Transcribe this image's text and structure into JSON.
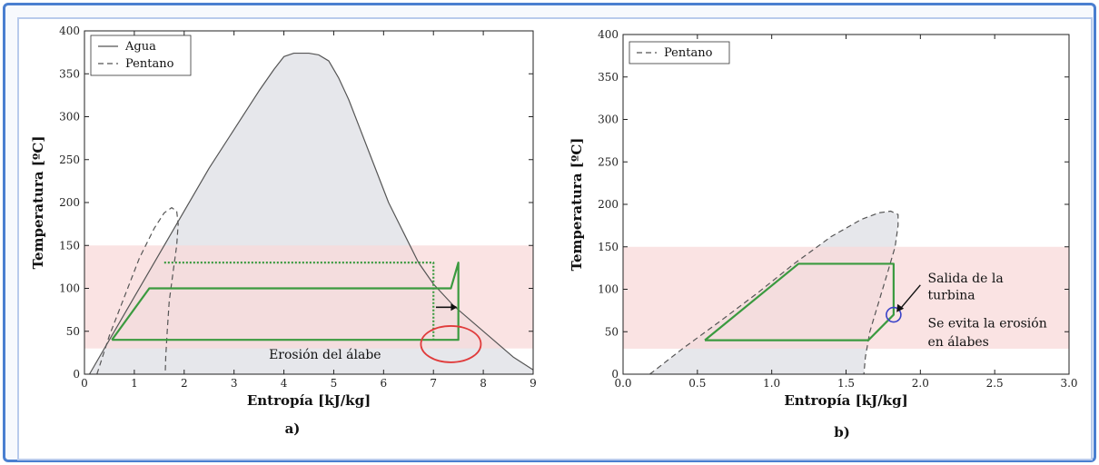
{
  "chart_data": [
    {
      "type": "line",
      "panel_label": "a)",
      "xlabel": "Entropía [kJ/kg]",
      "ylabel": "Temperatura [ºC]",
      "xlim": [
        0,
        9
      ],
      "ylim": [
        0,
        400
      ],
      "xticks": [
        "0",
        "1",
        "2",
        "3",
        "4",
        "5",
        "6",
        "7",
        "8",
        "9"
      ],
      "yticks": [
        "0",
        "50",
        "100",
        "150",
        "200",
        "250",
        "300",
        "350",
        "400"
      ],
      "legend": {
        "placement": "top-left",
        "entries": [
          "Agua",
          "Pentano"
        ]
      },
      "band": {
        "y": [
          30,
          150
        ],
        "color": "#f8d9d9"
      },
      "series": [
        {
          "name": "Agua",
          "style": "solid",
          "color": "#555555",
          "fill": "#e6e7eb",
          "x": [
            0.1,
            0.5,
            1.0,
            1.5,
            2.0,
            2.5,
            3.0,
            3.5,
            3.8,
            4.0,
            4.2,
            4.4,
            4.5,
            4.7,
            4.9,
            5.1,
            5.3,
            5.5,
            5.8,
            6.1,
            6.4,
            6.7,
            7.0,
            7.4,
            7.8,
            8.2,
            8.6,
            9.0
          ],
          "y": [
            0,
            40,
            90,
            140,
            190,
            240,
            285,
            330,
            355,
            370,
            374,
            374,
            374,
            372,
            365,
            345,
            320,
            290,
            245,
            200,
            165,
            130,
            105,
            80,
            60,
            40,
            20,
            5
          ]
        },
        {
          "name": "Pentano",
          "style": "dashed",
          "color": "#555555",
          "x": [
            0.25,
            0.5,
            0.8,
            1.1,
            1.4,
            1.6,
            1.75,
            1.85,
            1.88,
            1.85,
            1.78,
            1.7,
            1.66,
            1.63,
            1.62
          ],
          "y": [
            0,
            45,
            90,
            135,
            170,
            188,
            194,
            190,
            175,
            150,
            120,
            85,
            50,
            20,
            0
          ]
        },
        {
          "name": "Ciclo",
          "style": "solid",
          "color": "#3a9a3f",
          "x": [
            0.55,
            1.3,
            7.35,
            7.5,
            7.5,
            7.5,
            0.55
          ],
          "y": [
            40,
            100,
            100,
            130,
            100,
            40,
            40
          ]
        },
        {
          "name": "Ciclo punteado",
          "style": "dotted",
          "color": "#3a9a3f",
          "x": [
            1.6,
            7.0,
            7.0
          ],
          "y": [
            130,
            130,
            40
          ]
        }
      ],
      "annotations": [
        {
          "text": "Erosión del álabe",
          "x": 3.7,
          "y": 18
        }
      ]
    },
    {
      "type": "line",
      "panel_label": "b)",
      "xlabel": "Entropía [kJ/kg]",
      "ylabel": "Temperatura [ºC]",
      "xlim": [
        0.0,
        3.0
      ],
      "ylim": [
        0,
        400
      ],
      "xticks": [
        "0.0",
        "0.5",
        "1.0",
        "1.5",
        "2.0",
        "2.5",
        "3.0"
      ],
      "yticks": [
        "0",
        "50",
        "100",
        "150",
        "200",
        "250",
        "300",
        "350",
        "400"
      ],
      "legend": {
        "placement": "top-left",
        "entries": [
          "Pentano"
        ]
      },
      "band": {
        "y": [
          30,
          150
        ],
        "color": "#f8d9d9"
      },
      "series": [
        {
          "name": "Pentano",
          "style": "dashed",
          "color": "#555555",
          "fill": "#e6e7eb",
          "x": [
            0.18,
            0.4,
            0.65,
            0.9,
            1.15,
            1.4,
            1.6,
            1.72,
            1.8,
            1.85,
            1.85,
            1.83,
            1.78,
            1.72,
            1.66,
            1.63,
            1.62
          ],
          "y": [
            0,
            30,
            62,
            95,
            130,
            162,
            182,
            190,
            192,
            188,
            175,
            150,
            120,
            85,
            50,
            20,
            0
          ]
        },
        {
          "name": "Ciclo",
          "style": "solid",
          "color": "#3a9a3f",
          "x": [
            0.55,
            1.18,
            1.82,
            1.82,
            1.65,
            0.55
          ],
          "y": [
            40,
            130,
            130,
            70,
            40,
            40
          ]
        }
      ],
      "annotations": [
        {
          "text": "Salida de la",
          "x": 2.05,
          "y": 108
        },
        {
          "text": "turbina",
          "x": 2.05,
          "y": 88
        },
        {
          "text": "Se evita la erosión",
          "x": 2.05,
          "y": 55
        },
        {
          "text": "en álabes",
          "x": 2.05,
          "y": 33
        }
      ]
    }
  ]
}
